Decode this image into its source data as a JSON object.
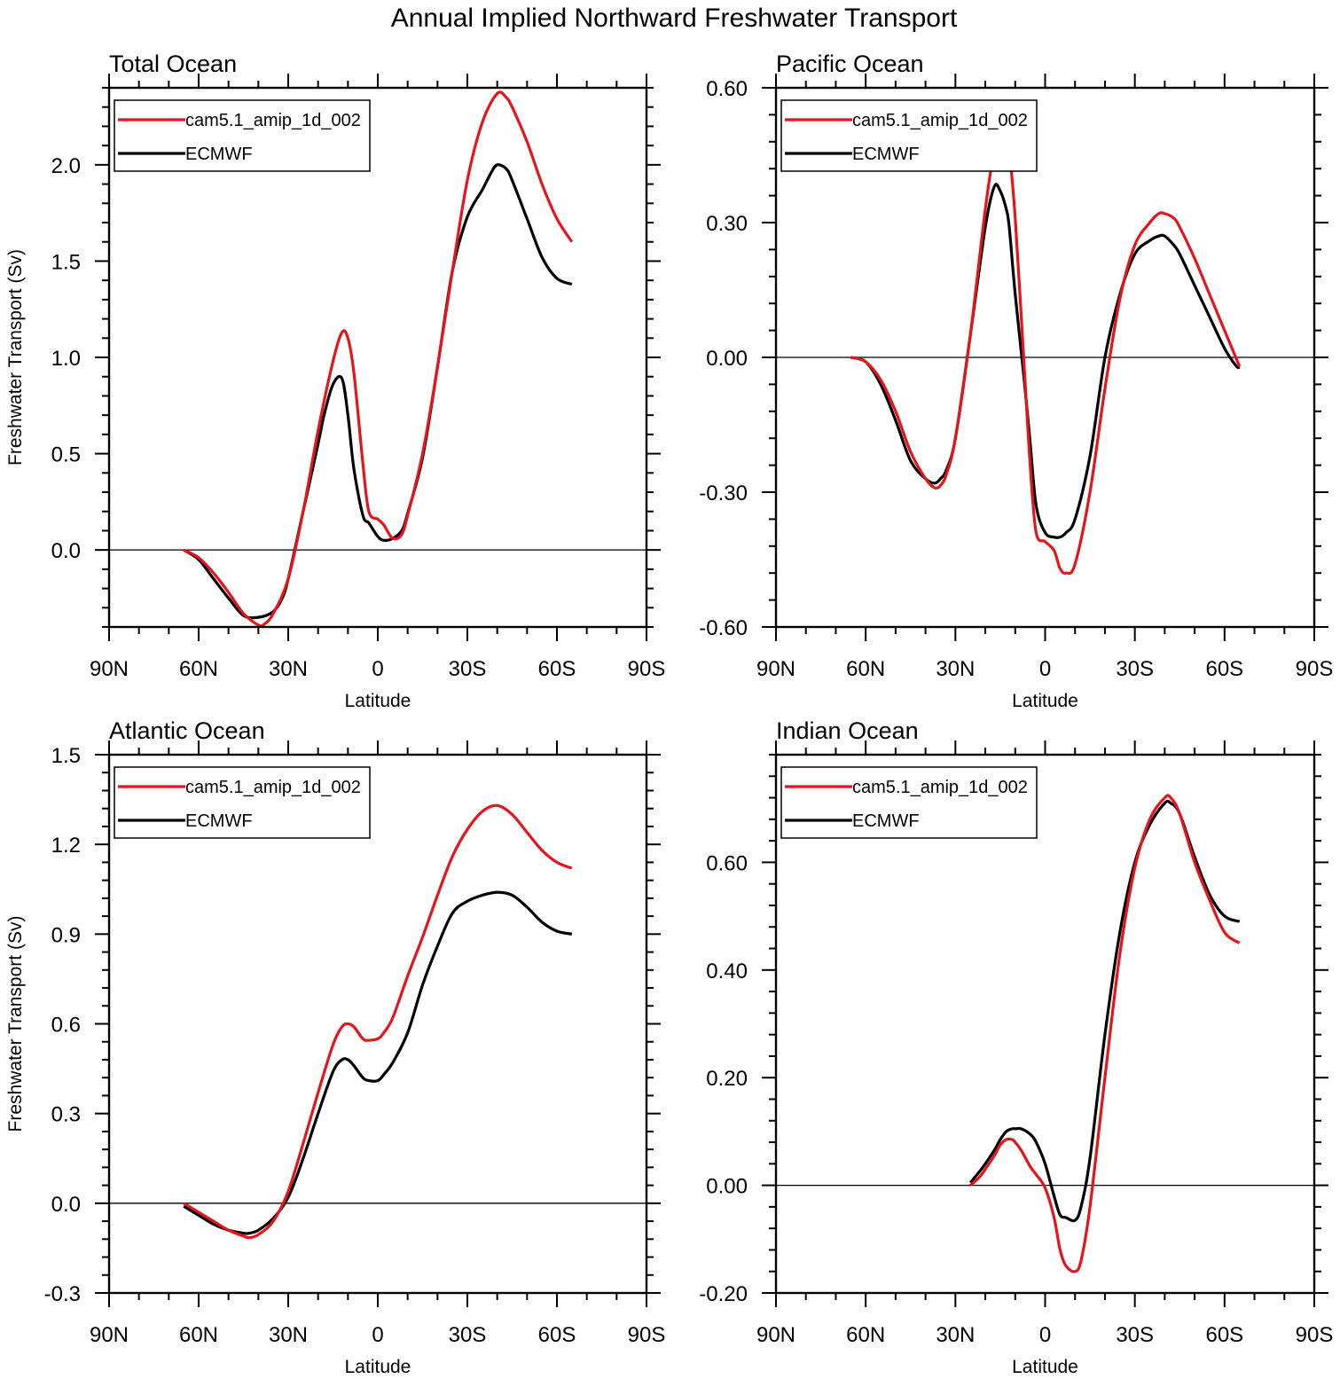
{
  "figure_title": "Annual Implied Northward Freshwater Transport",
  "colors": {
    "model": "#e8141b",
    "obs": "#000000",
    "zero_line": "#000000"
  },
  "chart_data": [
    {
      "type": "line",
      "title": "Total Ocean",
      "xlabel": "Latitude",
      "ylabel": "Freshwater Transport (Sv)",
      "xlim": [
        -90,
        90
      ],
      "ylim": [
        -0.4,
        2.4
      ],
      "x_ticks": [
        -90,
        -60,
        -30,
        0,
        30,
        60,
        90
      ],
      "x_tick_labels": [
        "90N",
        "60N",
        "30N",
        "0",
        "30S",
        "60S",
        "90S"
      ],
      "y_ticks": [
        0.0,
        0.5,
        1.0,
        1.5,
        2.0
      ],
      "y_tick_labels": [
        "0.0",
        "0.5",
        "1.0",
        "1.5",
        "2.0"
      ],
      "legend": "top-left",
      "series": [
        {
          "name": "cam5.1_amip_1d_002",
          "color": "#e8141b",
          "x": [
            -65,
            -60,
            -55,
            -50,
            -45,
            -40,
            -38,
            -35,
            -30,
            -25,
            -20,
            -15,
            -12,
            -10,
            -8,
            -5,
            -3,
            0,
            2,
            5,
            8,
            10,
            15,
            20,
            25,
            30,
            35,
            40,
            43,
            45,
            50,
            55,
            60,
            65
          ],
          "y": [
            0,
            -0.04,
            -0.12,
            -0.22,
            -0.33,
            -0.39,
            -0.385,
            -0.33,
            -0.15,
            0.2,
            0.62,
            0.98,
            1.13,
            1.1,
            0.92,
            0.45,
            0.2,
            0.16,
            0.13,
            0.06,
            0.08,
            0.18,
            0.5,
            0.95,
            1.45,
            1.92,
            2.22,
            2.37,
            2.35,
            2.3,
            2.12,
            1.9,
            1.72,
            1.6
          ]
        },
        {
          "name": "ECMWF",
          "color": "#000000",
          "x": [
            -65,
            -60,
            -55,
            -50,
            -45,
            -40,
            -35,
            -32,
            -30,
            -25,
            -20,
            -18,
            -15,
            -12,
            -10,
            -8,
            -5,
            -3,
            0,
            2,
            5,
            8,
            10,
            15,
            20,
            25,
            30,
            35,
            38,
            40,
            43,
            45,
            50,
            55,
            60,
            65
          ],
          "y": [
            0,
            -0.05,
            -0.15,
            -0.25,
            -0.34,
            -0.35,
            -0.32,
            -0.25,
            -0.15,
            0.2,
            0.55,
            0.7,
            0.86,
            0.89,
            0.7,
            0.42,
            0.18,
            0.14,
            0.07,
            0.05,
            0.06,
            0.1,
            0.19,
            0.48,
            0.95,
            1.45,
            1.73,
            1.87,
            1.96,
            2,
            1.98,
            1.92,
            1.72,
            1.52,
            1.41,
            1.38
          ]
        }
      ]
    },
    {
      "type": "line",
      "title": "Pacific Ocean",
      "xlabel": "Latitude",
      "ylabel": "",
      "xlim": [
        -90,
        90
      ],
      "ylim": [
        -0.6,
        0.6
      ],
      "x_ticks": [
        -90,
        -60,
        -30,
        0,
        30,
        60,
        90
      ],
      "x_tick_labels": [
        "90N",
        "60N",
        "30N",
        "0",
        "30S",
        "60S",
        "90S"
      ],
      "y_ticks": [
        -0.6,
        -0.3,
        0.0,
        0.3,
        0.6
      ],
      "y_tick_labels": [
        "-0.60",
        "-0.30",
        "0.00",
        "0.30",
        "0.60"
      ],
      "legend": "top-left",
      "series": [
        {
          "name": "cam5.1_amip_1d_002",
          "color": "#e8141b",
          "x": [
            -65,
            -60,
            -55,
            -50,
            -45,
            -40,
            -37,
            -35,
            -33,
            -30,
            -25,
            -20,
            -17,
            -15,
            -13,
            -12,
            -10,
            -7,
            -5,
            -3,
            0,
            3,
            5,
            7,
            10,
            15,
            20,
            25,
            30,
            35,
            38,
            40,
            43,
            45,
            50,
            55,
            60,
            65
          ],
          "y": [
            0,
            -0.01,
            -0.05,
            -0.12,
            -0.21,
            -0.27,
            -0.29,
            -0.285,
            -0.26,
            -0.18,
            0.05,
            0.33,
            0.46,
            0.49,
            0.49,
            0.46,
            0.31,
            -0.02,
            -0.24,
            -0.39,
            -0.41,
            -0.43,
            -0.47,
            -0.48,
            -0.46,
            -0.3,
            -0.07,
            0.13,
            0.25,
            0.3,
            0.32,
            0.32,
            0.31,
            0.29,
            0.22,
            0.14,
            0.06,
            -0.02
          ]
        },
        {
          "name": "ECMWF",
          "color": "#000000",
          "x": [
            -65,
            -60,
            -55,
            -50,
            -45,
            -40,
            -37,
            -35,
            -33,
            -30,
            -25,
            -20,
            -17,
            -15,
            -13,
            -12,
            -10,
            -7,
            -5,
            -3,
            0,
            3,
            5,
            7,
            10,
            15,
            20,
            25,
            30,
            35,
            38,
            40,
            43,
            45,
            50,
            55,
            60,
            64,
            65
          ],
          "y": [
            0,
            -0.01,
            -0.06,
            -0.14,
            -0.23,
            -0.27,
            -0.28,
            -0.27,
            -0.25,
            -0.18,
            0.05,
            0.29,
            0.38,
            0.37,
            0.33,
            0.29,
            0.14,
            -0.05,
            -0.19,
            -0.33,
            -0.39,
            -0.4,
            -0.4,
            -0.39,
            -0.36,
            -0.22,
            0.0,
            0.14,
            0.23,
            0.26,
            0.27,
            0.27,
            0.25,
            0.23,
            0.16,
            0.09,
            0.02,
            -0.02,
            -0.02
          ]
        }
      ]
    },
    {
      "type": "line",
      "title": "Atlantic Ocean",
      "xlabel": "Latitude",
      "ylabel": "Freshwater Transport (Sv)",
      "xlim": [
        -90,
        90
      ],
      "ylim": [
        -0.3,
        1.5
      ],
      "x_ticks": [
        -90,
        -60,
        -30,
        0,
        30,
        60,
        90
      ],
      "x_tick_labels": [
        "90N",
        "60N",
        "30N",
        "0",
        "30S",
        "60S",
        "90S"
      ],
      "y_ticks": [
        -0.3,
        0.0,
        0.3,
        0.6,
        0.9,
        1.2,
        1.5
      ],
      "y_tick_labels": [
        "-0.3",
        "0.0",
        "0.3",
        "0.6",
        "0.9",
        "1.2",
        "1.5"
      ],
      "legend": "top-left",
      "series": [
        {
          "name": "cam5.1_amip_1d_002",
          "color": "#e8141b",
          "x": [
            -65,
            -60,
            -55,
            -50,
            -45,
            -43,
            -40,
            -35,
            -30,
            -25,
            -20,
            -15,
            -12,
            -10,
            -8,
            -5,
            -3,
            0,
            2,
            5,
            10,
            15,
            20,
            25,
            30,
            35,
            40,
            45,
            50,
            55,
            60,
            65
          ],
          "y": [
            0,
            -0.03,
            -0.06,
            -0.09,
            -0.11,
            -0.115,
            -0.105,
            -0.06,
            0.04,
            0.2,
            0.37,
            0.53,
            0.59,
            0.6,
            0.59,
            0.55,
            0.545,
            0.55,
            0.57,
            0.62,
            0.76,
            0.89,
            1.03,
            1.16,
            1.25,
            1.31,
            1.33,
            1.3,
            1.24,
            1.18,
            1.14,
            1.12
          ]
        },
        {
          "name": "ECMWF",
          "color": "#000000",
          "x": [
            -65,
            -60,
            -55,
            -50,
            -45,
            -43,
            -40,
            -35,
            -30,
            -25,
            -20,
            -15,
            -12,
            -10,
            -8,
            -5,
            -3,
            0,
            2,
            5,
            10,
            15,
            20,
            25,
            30,
            35,
            40,
            45,
            50,
            55,
            60,
            65
          ],
          "y": [
            -0.01,
            -0.04,
            -0.07,
            -0.09,
            -0.1,
            -0.1,
            -0.09,
            -0.05,
            0.02,
            0.15,
            0.3,
            0.44,
            0.48,
            0.48,
            0.46,
            0.42,
            0.41,
            0.41,
            0.43,
            0.47,
            0.57,
            0.73,
            0.86,
            0.97,
            1.01,
            1.03,
            1.04,
            1.03,
            0.99,
            0.94,
            0.91,
            0.9
          ]
        }
      ]
    },
    {
      "type": "line",
      "title": "Indian Ocean",
      "xlabel": "Latitude",
      "ylabel": "",
      "xlim": [
        -90,
        90
      ],
      "ylim": [
        -0.2,
        0.8
      ],
      "x_ticks": [
        -90,
        -60,
        -30,
        0,
        30,
        60,
        90
      ],
      "x_tick_labels": [
        "90N",
        "60N",
        "30N",
        "0",
        "30S",
        "60S",
        "90S"
      ],
      "y_ticks": [
        -0.2,
        0.0,
        0.2,
        0.4,
        0.6
      ],
      "y_tick_labels": [
        "-0.20",
        "0.00",
        "0.20",
        "0.40",
        "0.60"
      ],
      "legend": "top-left",
      "series": [
        {
          "name": "cam5.1_amip_1d_002",
          "color": "#e8141b",
          "x": [
            -25,
            -22,
            -20,
            -17,
            -15,
            -13,
            -11,
            -10,
            -8,
            -5,
            -3,
            0,
            3,
            5,
            7,
            10,
            12,
            15,
            20,
            25,
            30,
            35,
            40,
            42,
            45,
            50,
            55,
            60,
            65
          ],
          "y": [
            0,
            0.015,
            0.03,
            0.055,
            0.075,
            0.085,
            0.085,
            0.08,
            0.065,
            0.035,
            0.02,
            -0.005,
            -0.06,
            -0.12,
            -0.15,
            -0.16,
            -0.14,
            -0.04,
            0.2,
            0.43,
            0.59,
            0.68,
            0.72,
            0.72,
            0.69,
            0.6,
            0.53,
            0.47,
            0.45
          ]
        },
        {
          "name": "ECMWF",
          "color": "#000000",
          "x": [
            -25,
            -22,
            -20,
            -17,
            -15,
            -13,
            -11,
            -10,
            -8,
            -5,
            -3,
            0,
            3,
            5,
            7,
            10,
            12,
            15,
            20,
            25,
            30,
            35,
            40,
            42,
            45,
            50,
            55,
            60,
            65
          ],
          "y": [
            0.005,
            0.025,
            0.04,
            0.065,
            0.085,
            0.1,
            0.105,
            0.105,
            0.105,
            0.095,
            0.08,
            0.04,
            -0.02,
            -0.055,
            -0.06,
            -0.065,
            -0.04,
            0.05,
            0.28,
            0.47,
            0.6,
            0.67,
            0.71,
            0.71,
            0.69,
            0.61,
            0.54,
            0.5,
            0.49
          ]
        }
      ]
    }
  ]
}
